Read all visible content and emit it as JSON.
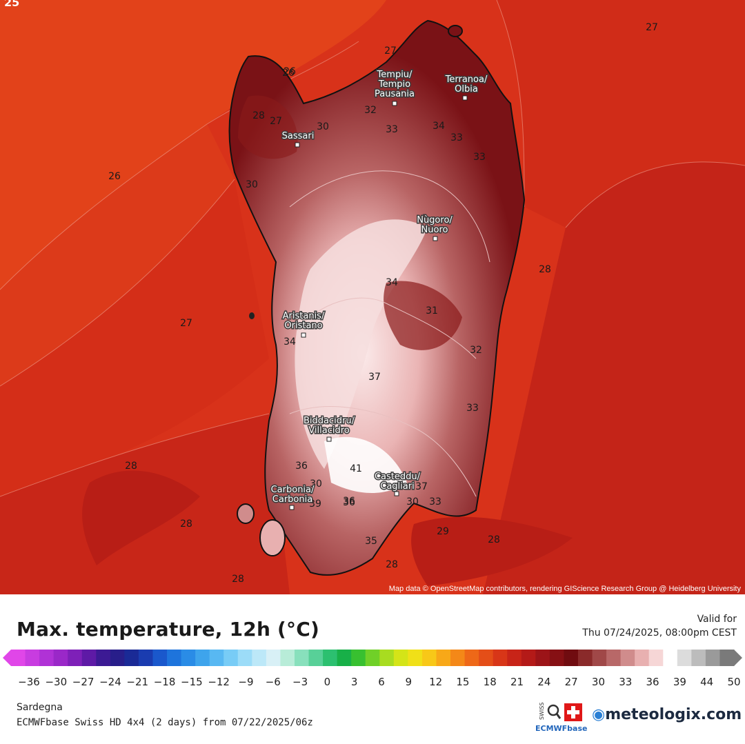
{
  "map": {
    "corner_label": "25",
    "attribution": "Map data © OpenStreetMap contributors, rendering GIScience Research Group @ Heidelberg University",
    "cities": [
      {
        "id": "tempio",
        "lines": [
          "Tempiu/",
          "Tempio",
          "Pausania"
        ]
      },
      {
        "id": "olbia",
        "lines": [
          "Terranoa/",
          "Olbia"
        ]
      },
      {
        "id": "sassari",
        "lines": [
          "Sassari"
        ]
      },
      {
        "id": "nuoro",
        "lines": [
          "Nùgoro/",
          "Nuoro"
        ]
      },
      {
        "id": "oristano",
        "lines": [
          "Aristanis/",
          "Oristano"
        ]
      },
      {
        "id": "villacidro",
        "lines": [
          "Biddacidru/",
          "Villacidro"
        ]
      },
      {
        "id": "cagliari",
        "lines": [
          "Casteddu/",
          "Cagliari"
        ]
      },
      {
        "id": "carbonia",
        "lines": [
          "Carbonia/",
          "Carbonia"
        ]
      }
    ],
    "contour_labels": [
      "26",
      "27",
      "26",
      "26",
      "28",
      "27",
      "30",
      "32",
      "33",
      "34",
      "33",
      "33",
      "30",
      "34",
      "31",
      "27",
      "28",
      "34",
      "33",
      "32",
      "37",
      "36",
      "36",
      "41",
      "37",
      "33",
      "39",
      "36",
      "35",
      "28",
      "28",
      "29",
      "28",
      "28",
      "28",
      "30",
      "30",
      "27"
    ]
  },
  "legend": {
    "title": "Max. temperature, 12h (°C)",
    "valid_for": "Valid for",
    "valid_time": "Thu 07/24/2025, 08:00pm CEST",
    "ticks": [
      "-36",
      "-30",
      "-27",
      "-24",
      "-21",
      "-18",
      "-15",
      "-12",
      "-9",
      "-6",
      "-3",
      "0",
      "3",
      "6",
      "9",
      "12",
      "15",
      "18",
      "21",
      "24",
      "27",
      "30",
      "33",
      "36",
      "39",
      "44",
      "50"
    ],
    "colors": [
      "#e046e8",
      "#c83ce0",
      "#b032d6",
      "#9a28c8",
      "#7e20b8",
      "#5e1aa6",
      "#3c1a94",
      "#281e8a",
      "#1a2a96",
      "#1a3cb0",
      "#1a58cc",
      "#1e74dc",
      "#2a8ce6",
      "#3ea4ec",
      "#58b8f2",
      "#78ccf6",
      "#9cdcf8",
      "#bce8f8",
      "#d8f0f6",
      "#b8ecd8",
      "#88e0bc",
      "#58d098",
      "#2cc070",
      "#18b048",
      "#38c030",
      "#70d028",
      "#a8dc20",
      "#d4e418",
      "#f0e018",
      "#f8c818",
      "#f8a818",
      "#f48818",
      "#ee6818",
      "#e44e18",
      "#d83618",
      "#c82418",
      "#b41a18",
      "#9c1418",
      "#861014",
      "#700c10",
      "#8a2a2a",
      "#a04848",
      "#b86868",
      "#d08c8c",
      "#e8b0b0",
      "#f6d6d6",
      "#ffffff",
      "#dcdcdc",
      "#bcbcbc",
      "#9a9a9a",
      "#7a7a7a"
    ]
  },
  "footer": {
    "region": "Sardegna",
    "model": "ECMWFbase Swiss HD 4x4 (2 days) from  07/22/2025/06z",
    "badge_top": "SWISS HD",
    "badge_bottom": "ECMWFbase",
    "logo": "meteologix.com"
  }
}
